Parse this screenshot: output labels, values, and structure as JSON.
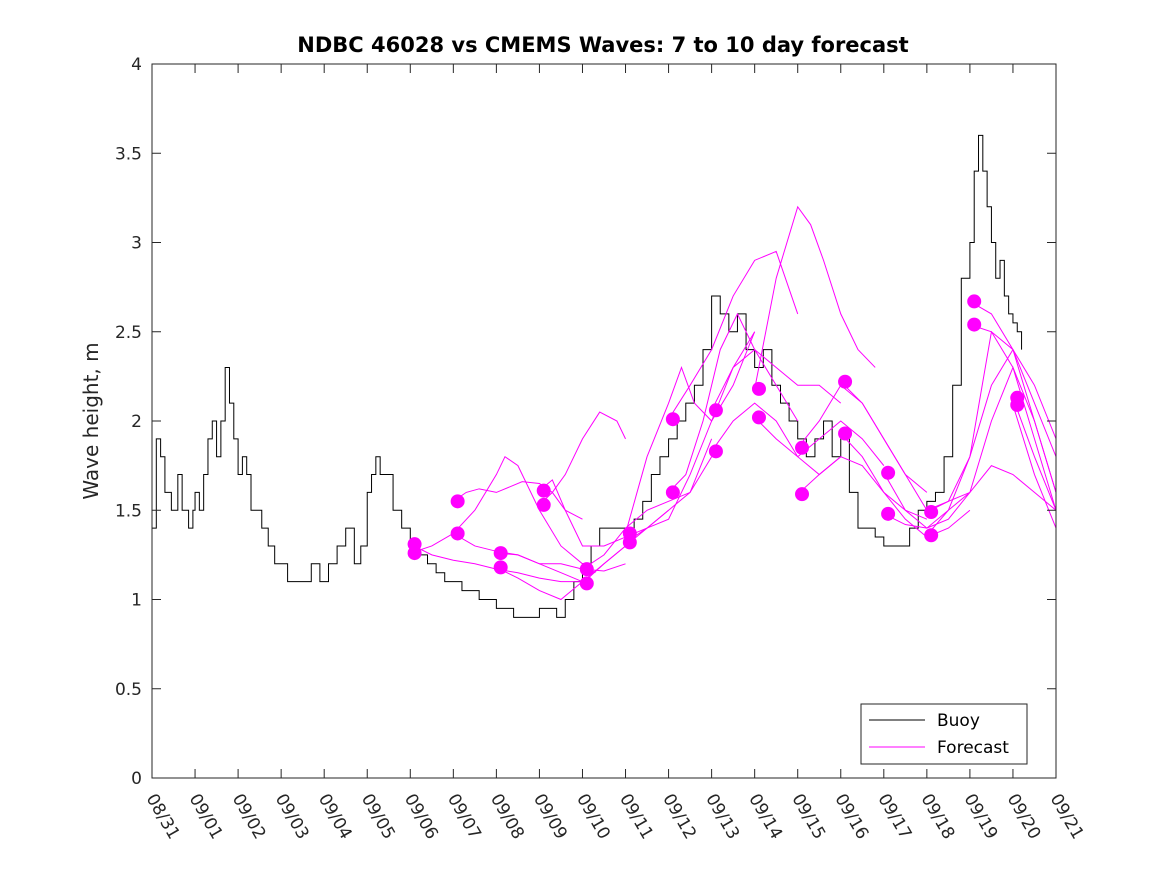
{
  "chart_data": {
    "type": "line",
    "title": "NDBC 46028 vs CMEMS Waves: 7 to 10 day forecast",
    "xlabel": "",
    "ylabel": "Wave height, m",
    "xlim": [
      0,
      21
    ],
    "ylim": [
      0,
      4
    ],
    "x_ticks": [
      0,
      1,
      2,
      3,
      4,
      5,
      6,
      7,
      8,
      9,
      10,
      11,
      12,
      13,
      14,
      15,
      16,
      17,
      18,
      19,
      20,
      21
    ],
    "x_tick_labels": [
      "08/31",
      "09/01",
      "09/02",
      "09/03",
      "09/04",
      "09/05",
      "09/06",
      "09/07",
      "09/08",
      "09/09",
      "09/10",
      "09/11",
      "09/12",
      "09/13",
      "09/14",
      "09/15",
      "09/16",
      "09/17",
      "09/18",
      "09/19",
      "09/20",
      "09/21"
    ],
    "y_ticks": [
      0,
      0.5,
      1,
      1.5,
      2,
      2.5,
      3,
      3.5,
      4
    ],
    "y_tick_labels": [
      "0",
      "0.5",
      "1",
      "1.5",
      "2",
      "2.5",
      "3",
      "3.5",
      "4"
    ],
    "colors": {
      "buoy": "#000000",
      "forecast": "#ff00ff"
    },
    "legend": {
      "position": "bottom-right",
      "entries": [
        {
          "label": "Buoy",
          "color": "#000000"
        },
        {
          "label": "Forecast",
          "color": "#ff00ff"
        }
      ]
    },
    "buoy": {
      "name": "Buoy",
      "x": [
        0,
        0.1,
        0.2,
        0.3,
        0.45,
        0.6,
        0.7,
        0.85,
        0.95,
        1.0,
        1.1,
        1.2,
        1.3,
        1.4,
        1.5,
        1.6,
        1.7,
        1.8,
        1.9,
        2.0,
        2.1,
        2.2,
        2.3,
        2.45,
        2.55,
        2.7,
        2.85,
        3.0,
        3.15,
        3.3,
        3.5,
        3.7,
        3.9,
        4.1,
        4.3,
        4.5,
        4.7,
        4.85,
        5.0,
        5.1,
        5.2,
        5.3,
        5.45,
        5.6,
        5.8,
        6.0,
        6.2,
        6.4,
        6.6,
        6.8,
        7.0,
        7.2,
        7.4,
        7.6,
        7.8,
        8.0,
        8.2,
        8.4,
        8.6,
        8.8,
        9.0,
        9.2,
        9.4,
        9.6,
        9.8,
        10.0,
        10.2,
        10.4,
        10.6,
        10.8,
        11.0,
        11.2,
        11.4,
        11.6,
        11.8,
        12.0,
        12.2,
        12.4,
        12.6,
        12.8,
        13.0,
        13.2,
        13.4,
        13.6,
        13.8,
        14.0,
        14.2,
        14.4,
        14.6,
        14.8,
        15.0,
        15.2,
        15.4,
        15.6,
        15.8,
        16.0,
        16.2,
        16.4,
        16.6,
        16.8,
        17.0,
        17.2,
        17.4,
        17.6,
        17.8,
        18.0,
        18.2,
        18.4,
        18.6,
        18.8,
        19.0,
        19.1,
        19.2,
        19.3,
        19.4,
        19.5,
        19.6,
        19.7,
        19.8,
        19.9,
        20.0,
        20.1,
        20.2
      ],
      "y": [
        1.4,
        1.9,
        1.8,
        1.6,
        1.5,
        1.7,
        1.5,
        1.4,
        1.5,
        1.6,
        1.5,
        1.7,
        1.9,
        2.0,
        1.8,
        2.0,
        2.3,
        2.1,
        1.9,
        1.7,
        1.8,
        1.7,
        1.5,
        1.5,
        1.4,
        1.3,
        1.2,
        1.2,
        1.1,
        1.1,
        1.1,
        1.2,
        1.1,
        1.2,
        1.3,
        1.4,
        1.2,
        1.3,
        1.6,
        1.7,
        1.8,
        1.7,
        1.7,
        1.5,
        1.4,
        1.3,
        1.25,
        1.2,
        1.15,
        1.1,
        1.1,
        1.05,
        1.05,
        1.0,
        1.0,
        0.95,
        0.95,
        0.9,
        0.9,
        0.9,
        0.95,
        0.95,
        0.9,
        1.0,
        1.1,
        1.2,
        1.3,
        1.4,
        1.4,
        1.4,
        1.4,
        1.45,
        1.55,
        1.7,
        1.8,
        1.9,
        2.0,
        2.1,
        2.2,
        2.4,
        2.7,
        2.6,
        2.5,
        2.6,
        2.4,
        2.3,
        2.4,
        2.2,
        2.1,
        2.0,
        1.9,
        1.8,
        1.9,
        2.0,
        1.8,
        1.9,
        1.6,
        1.4,
        1.4,
        1.35,
        1.3,
        1.3,
        1.3,
        1.4,
        1.5,
        1.55,
        1.6,
        1.8,
        2.2,
        2.8,
        3.0,
        3.4,
        3.6,
        3.4,
        3.2,
        3.0,
        2.8,
        2.9,
        2.7,
        2.6,
        2.55,
        2.5,
        2.4
      ]
    },
    "forecast_series": [
      {
        "name": "Forecast",
        "x": [
          6.0,
          6.5,
          7.0,
          7.5,
          8.0,
          8.5,
          9.0,
          9.5,
          10.0
        ],
        "y": [
          1.31,
          1.25,
          1.22,
          1.2,
          1.17,
          1.15,
          1.12,
          1.1,
          1.1
        ]
      },
      {
        "name": "Forecast",
        "x": [
          6.0,
          6.5,
          7.0,
          7.5,
          8.0,
          8.5,
          9.0,
          9.5,
          10.0
        ],
        "y": [
          1.26,
          1.3,
          1.37,
          1.3,
          1.27,
          1.25,
          1.2,
          1.15,
          1.1
        ]
      },
      {
        "name": "Forecast",
        "x": [
          7.0,
          7.3,
          7.6,
          8.0,
          8.3,
          8.6,
          9.0,
          9.3,
          9.6,
          10.0
        ],
        "y": [
          1.55,
          1.6,
          1.62,
          1.6,
          1.63,
          1.66,
          1.65,
          1.6,
          1.5,
          1.45
        ]
      },
      {
        "name": "Forecast",
        "x": [
          7.0,
          7.5,
          8.0,
          8.2,
          8.5,
          9.0,
          9.5,
          10.0,
          10.3
        ],
        "y": [
          1.37,
          1.5,
          1.7,
          1.8,
          1.75,
          1.5,
          1.3,
          1.2,
          1.15
        ]
      },
      {
        "name": "Forecast",
        "x": [
          8.0,
          8.5,
          9.0,
          9.5,
          10.0,
          10.5,
          11.0
        ],
        "y": [
          1.26,
          1.25,
          1.2,
          1.2,
          1.17,
          1.16,
          1.2
        ]
      },
      {
        "name": "Forecast",
        "x": [
          8.0,
          8.5,
          9.0,
          9.5,
          10.0,
          10.5,
          11.0
        ],
        "y": [
          1.18,
          1.12,
          1.05,
          1.0,
          1.1,
          1.2,
          1.3
        ]
      },
      {
        "name": "Forecast",
        "x": [
          9.0,
          9.3,
          9.6,
          10.0,
          10.5,
          11.0,
          11.5,
          12.0
        ],
        "y": [
          1.61,
          1.67,
          1.5,
          1.3,
          1.3,
          1.35,
          1.4,
          1.5
        ]
      },
      {
        "name": "Forecast",
        "x": [
          9.0,
          9.3,
          9.6,
          10.0,
          10.4,
          10.8,
          11.0
        ],
        "y": [
          1.53,
          1.6,
          1.7,
          1.9,
          2.05,
          2.0,
          1.9
        ]
      },
      {
        "name": "Forecast",
        "x": [
          10.0,
          10.5,
          11.0,
          11.5,
          12.0,
          12.5,
          13.0
        ],
        "y": [
          1.17,
          1.25,
          1.4,
          1.5,
          1.55,
          1.6,
          1.8
        ]
      },
      {
        "name": "Forecast",
        "x": [
          10.0,
          10.5,
          11.0,
          11.5,
          12.0,
          12.5,
          13.0
        ],
        "y": [
          1.09,
          1.2,
          1.3,
          1.4,
          1.5,
          1.6,
          1.9
        ]
      },
      {
        "name": "Forecast",
        "x": [
          11.0,
          11.5,
          12.0,
          12.3,
          12.6,
          13.0,
          13.5,
          14.0
        ],
        "y": [
          1.37,
          1.8,
          2.1,
          2.3,
          2.1,
          2.0,
          2.2,
          2.5
        ]
      },
      {
        "name": "Forecast",
        "x": [
          11.0,
          11.5,
          12.0,
          12.5,
          13.0,
          13.5,
          14.0
        ],
        "y": [
          1.32,
          1.4,
          1.45,
          1.7,
          2.0,
          2.3,
          2.5
        ]
      },
      {
        "name": "Forecast",
        "x": [
          12.0,
          12.5,
          13.0,
          13.5,
          14.0,
          14.5,
          15.0
        ],
        "y": [
          2.01,
          2.2,
          2.4,
          2.7,
          2.9,
          2.95,
          2.6
        ]
      },
      {
        "name": "Forecast",
        "x": [
          12.0,
          12.4,
          12.8,
          13.2,
          13.6,
          14.0,
          14.5,
          15.0
        ],
        "y": [
          1.6,
          1.7,
          2.0,
          2.4,
          2.6,
          2.4,
          2.2,
          2.0
        ]
      },
      {
        "name": "Forecast",
        "x": [
          13.0,
          13.5,
          14.0,
          14.5,
          15.0,
          15.5,
          16.0
        ],
        "y": [
          2.06,
          2.3,
          2.4,
          2.3,
          2.2,
          2.2,
          2.1
        ]
      },
      {
        "name": "Forecast",
        "x": [
          13.0,
          13.5,
          14.0,
          14.5,
          15.0,
          15.5,
          16.0
        ],
        "y": [
          1.83,
          2.0,
          2.1,
          2.0,
          1.8,
          1.7,
          1.8
        ]
      },
      {
        "name": "Forecast",
        "x": [
          14.0,
          14.5,
          15.0,
          15.3,
          15.6,
          16.0,
          16.4,
          16.8
        ],
        "y": [
          2.18,
          2.8,
          3.2,
          3.1,
          2.9,
          2.6,
          2.4,
          2.3
        ]
      },
      {
        "name": "Forecast",
        "x": [
          14.0,
          14.5,
          15.0,
          15.5,
          16.0,
          16.5,
          17.0
        ],
        "y": [
          2.02,
          1.9,
          1.8,
          1.9,
          2.0,
          1.9,
          1.75
        ]
      },
      {
        "name": "Forecast",
        "x": [
          15.0,
          15.5,
          16.0,
          16.5,
          17.0,
          17.5,
          18.0
        ],
        "y": [
          1.85,
          2.0,
          2.2,
          2.1,
          1.9,
          1.7,
          1.6
        ]
      },
      {
        "name": "Forecast",
        "x": [
          15.0,
          15.5,
          16.0,
          16.5,
          17.0,
          17.5,
          18.0
        ],
        "y": [
          1.59,
          1.7,
          1.8,
          1.75,
          1.6,
          1.5,
          1.45
        ]
      },
      {
        "name": "Forecast",
        "x": [
          16.0,
          16.5,
          17.0,
          17.5,
          18.0,
          18.5,
          19.0
        ],
        "y": [
          2.22,
          2.1,
          1.9,
          1.7,
          1.5,
          1.55,
          1.6
        ]
      },
      {
        "name": "Forecast",
        "x": [
          16.0,
          16.5,
          17.0,
          17.5,
          18.0,
          18.5,
          19.0
        ],
        "y": [
          1.93,
          1.8,
          1.6,
          1.45,
          1.35,
          1.4,
          1.5
        ]
      },
      {
        "name": "Forecast",
        "x": [
          17.0,
          17.5,
          18.0,
          18.5,
          19.0,
          19.5,
          20.0,
          20.5,
          21.0
        ],
        "y": [
          1.71,
          1.5,
          1.4,
          1.5,
          1.8,
          2.2,
          2.4,
          2.2,
          1.9
        ]
      },
      {
        "name": "Forecast",
        "x": [
          17.0,
          17.5,
          18.0,
          18.5,
          19.0,
          19.5,
          20.0,
          20.5,
          21.0
        ],
        "y": [
          1.48,
          1.42,
          1.4,
          1.45,
          1.6,
          2.0,
          2.3,
          2.0,
          1.6
        ]
      },
      {
        "name": "Forecast",
        "x": [
          18.0,
          18.5,
          19.0,
          19.5,
          20.0,
          20.5,
          21.0
        ],
        "y": [
          1.49,
          1.55,
          1.8,
          2.5,
          2.4,
          2.1,
          1.8
        ]
      },
      {
        "name": "Forecast",
        "x": [
          18.0,
          18.5,
          19.0,
          19.5,
          20.0,
          20.5,
          21.0
        ],
        "y": [
          1.36,
          1.5,
          1.6,
          1.75,
          1.7,
          1.6,
          1.5
        ]
      },
      {
        "name": "Forecast",
        "x": [
          19.0,
          19.5,
          20.0,
          20.5,
          21.0
        ],
        "y": [
          2.67,
          2.6,
          2.4,
          2.0,
          1.6
        ]
      },
      {
        "name": "Forecast",
        "x": [
          19.0,
          19.5,
          20.0,
          20.5,
          21.0
        ],
        "y": [
          2.54,
          2.5,
          2.3,
          1.9,
          1.5
        ]
      },
      {
        "name": "Forecast",
        "x": [
          20.0,
          20.5,
          21.0
        ],
        "y": [
          2.13,
          1.8,
          1.5
        ]
      },
      {
        "name": "Forecast",
        "x": [
          20.0,
          20.5,
          21.0
        ],
        "y": [
          2.09,
          1.7,
          1.4
        ]
      }
    ],
    "forecast_markers": {
      "x": [
        6.1,
        6.1,
        7.1,
        7.1,
        8.1,
        8.1,
        9.1,
        9.1,
        10.1,
        10.1,
        11.1,
        11.1,
        12.1,
        12.1,
        13.1,
        13.1,
        14.1,
        14.1,
        15.1,
        15.1,
        16.1,
        16.1,
        17.1,
        17.1,
        18.1,
        18.1,
        19.1,
        19.1,
        20.1,
        20.1
      ],
      "y": [
        1.31,
        1.26,
        1.55,
        1.37,
        1.26,
        1.18,
        1.61,
        1.53,
        1.17,
        1.09,
        1.37,
        1.32,
        2.01,
        1.6,
        2.06,
        1.83,
        2.18,
        2.02,
        1.85,
        1.59,
        2.22,
        1.93,
        1.71,
        1.48,
        1.49,
        1.36,
        2.67,
        2.54,
        2.13,
        2.09
      ]
    }
  }
}
